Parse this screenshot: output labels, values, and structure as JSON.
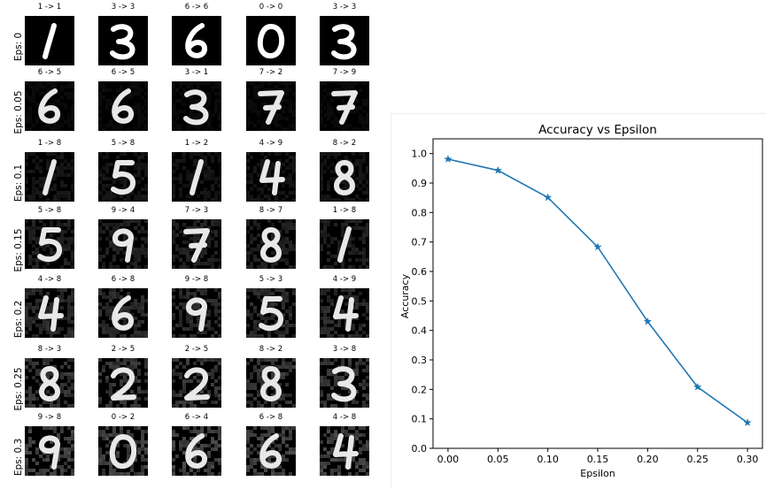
{
  "examples": {
    "rows": [
      {
        "label": "Eps: 0",
        "noise": 0.0,
        "cells": [
          {
            "title": "1 -> 1",
            "digit": "1"
          },
          {
            "title": "3 -> 3",
            "digit": "3"
          },
          {
            "title": "6 -> 6",
            "digit": "6"
          },
          {
            "title": "0 -> 0",
            "digit": "0"
          },
          {
            "title": "3 -> 3",
            "digit": "3"
          }
        ]
      },
      {
        "label": "Eps: 0.05",
        "noise": 0.05,
        "cells": [
          {
            "title": "6 -> 5",
            "digit": "6"
          },
          {
            "title": "6 -> 5",
            "digit": "6"
          },
          {
            "title": "3 -> 1",
            "digit": "3"
          },
          {
            "title": "7 -> 2",
            "digit": "7"
          },
          {
            "title": "7 -> 9",
            "digit": "7"
          }
        ]
      },
      {
        "label": "Eps: 0.1",
        "noise": 0.1,
        "cells": [
          {
            "title": "1 -> 8",
            "digit": "1"
          },
          {
            "title": "5 -> 8",
            "digit": "5"
          },
          {
            "title": "1 -> 2",
            "digit": "1"
          },
          {
            "title": "4 -> 9",
            "digit": "4"
          },
          {
            "title": "8 -> 2",
            "digit": "8"
          }
        ]
      },
      {
        "label": "Eps: 0.15",
        "noise": 0.15,
        "cells": [
          {
            "title": "5 -> 8",
            "digit": "5"
          },
          {
            "title": "9 -> 4",
            "digit": "9"
          },
          {
            "title": "7 -> 3",
            "digit": "7"
          },
          {
            "title": "8 -> 7",
            "digit": "8"
          },
          {
            "title": "1 -> 8",
            "digit": "1"
          }
        ]
      },
      {
        "label": "Eps: 0.2",
        "noise": 0.2,
        "cells": [
          {
            "title": "4 -> 8",
            "digit": "4"
          },
          {
            "title": "6 -> 8",
            "digit": "6"
          },
          {
            "title": "9 -> 8",
            "digit": "9"
          },
          {
            "title": "5 -> 3",
            "digit": "5"
          },
          {
            "title": "4 -> 9",
            "digit": "4"
          }
        ]
      },
      {
        "label": "Eps: 0.25",
        "noise": 0.25,
        "cells": [
          {
            "title": "8 -> 3",
            "digit": "8"
          },
          {
            "title": "2 -> 5",
            "digit": "2"
          },
          {
            "title": "2 -> 5",
            "digit": "2"
          },
          {
            "title": "8 -> 2",
            "digit": "8"
          },
          {
            "title": "3 -> 8",
            "digit": "3"
          }
        ]
      },
      {
        "label": "Eps: 0.3",
        "noise": 0.3,
        "cells": [
          {
            "title": "9 -> 8",
            "digit": "9"
          },
          {
            "title": "0 -> 2",
            "digit": "0"
          },
          {
            "title": "6 -> 4",
            "digit": "6"
          },
          {
            "title": "6 -> 8",
            "digit": "6"
          },
          {
            "title": "4 -> 8",
            "digit": "4"
          }
        ]
      }
    ]
  },
  "chart_data": {
    "type": "line",
    "title": "Accuracy vs Epsilon",
    "xlabel": "Epsilon",
    "ylabel": "Accuracy",
    "x": [
      0.0,
      0.05,
      0.1,
      0.15,
      0.2,
      0.25,
      0.3
    ],
    "series": [
      {
        "values": [
          0.981,
          0.943,
          0.851,
          0.683,
          0.43,
          0.208,
          0.087
        ],
        "marker": "star",
        "color": "#1f77b4"
      }
    ],
    "xlim": [
      -0.015,
      0.315
    ],
    "ylim": [
      0.0,
      1.05
    ],
    "xticks": [
      "0.00",
      "0.05",
      "0.10",
      "0.15",
      "0.20",
      "0.25",
      "0.30"
    ],
    "yticks": [
      "0.0",
      "0.1",
      "0.2",
      "0.3",
      "0.4",
      "0.5",
      "0.6",
      "0.7",
      "0.8",
      "0.9",
      "1.0"
    ],
    "grid": false
  }
}
